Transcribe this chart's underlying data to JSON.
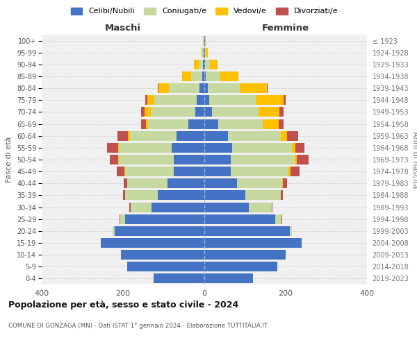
{
  "age_groups_bottom_to_top": [
    "0-4",
    "5-9",
    "10-14",
    "15-19",
    "20-24",
    "25-29",
    "30-34",
    "35-39",
    "40-44",
    "45-49",
    "50-54",
    "55-59",
    "60-64",
    "65-69",
    "70-74",
    "75-79",
    "80-84",
    "85-89",
    "90-94",
    "95-99",
    "100+"
  ],
  "birth_years_bottom_to_top": [
    "2019-2023",
    "2014-2018",
    "2009-2013",
    "2004-2008",
    "1999-2003",
    "1994-1998",
    "1989-1993",
    "1984-1988",
    "1979-1983",
    "1974-1978",
    "1969-1973",
    "1964-1968",
    "1959-1963",
    "1954-1958",
    "1949-1953",
    "1944-1948",
    "1939-1943",
    "1934-1938",
    "1929-1933",
    "1924-1928",
    "≤ 1923"
  ],
  "males": {
    "celibi": [
      125,
      190,
      205,
      255,
      220,
      195,
      130,
      115,
      90,
      75,
      75,
      80,
      68,
      40,
      22,
      18,
      12,
      5,
      3,
      2,
      1
    ],
    "coniugati": [
      0,
      0,
      0,
      0,
      5,
      12,
      52,
      80,
      100,
      120,
      135,
      130,
      115,
      98,
      110,
      105,
      75,
      28,
      10,
      3,
      0
    ],
    "vedovi": [
      0,
      0,
      0,
      0,
      0,
      0,
      0,
      0,
      0,
      2,
      2,
      2,
      5,
      5,
      15,
      18,
      25,
      22,
      12,
      2,
      0
    ],
    "divorziati": [
      0,
      0,
      0,
      0,
      0,
      2,
      2,
      5,
      8,
      18,
      20,
      28,
      25,
      12,
      8,
      5,
      2,
      0,
      0,
      0,
      0
    ]
  },
  "females": {
    "nubili": [
      120,
      180,
      200,
      240,
      210,
      175,
      110,
      100,
      80,
      65,
      65,
      68,
      58,
      35,
      18,
      12,
      8,
      4,
      2,
      1,
      1
    ],
    "coniugate": [
      0,
      0,
      0,
      0,
      5,
      15,
      55,
      88,
      112,
      142,
      158,
      148,
      130,
      108,
      115,
      115,
      80,
      35,
      12,
      3,
      0
    ],
    "vedove": [
      0,
      0,
      0,
      0,
      0,
      0,
      0,
      0,
      2,
      5,
      5,
      8,
      15,
      40,
      52,
      68,
      65,
      45,
      18,
      5,
      2
    ],
    "divorziate": [
      0,
      0,
      0,
      0,
      0,
      2,
      2,
      5,
      10,
      22,
      28,
      22,
      28,
      12,
      10,
      5,
      2,
      0,
      0,
      0,
      0
    ]
  },
  "colors": {
    "celibi": "#4472c4",
    "coniugati": "#c5d9a0",
    "vedovi": "#ffc000",
    "divorziati": "#c0504d"
  },
  "title_main": "Popolazione per età, sesso e stato civile - 2024",
  "title_sub": "COMUNE DI GONZAGA (MN) - Dati ISTAT 1° gennaio 2024 - Elaborazione TUTTITALIA.IT",
  "xlabel_left": "Maschi",
  "xlabel_right": "Femmine",
  "ylabel_left": "Fasce di età",
  "ylabel_right": "Anni di nascita",
  "xlim": 400,
  "background_color": "#f0f0f0",
  "legend_labels": [
    "Celibi/Nubili",
    "Coniugati/e",
    "Vedovi/e",
    "Divorziati/e"
  ]
}
